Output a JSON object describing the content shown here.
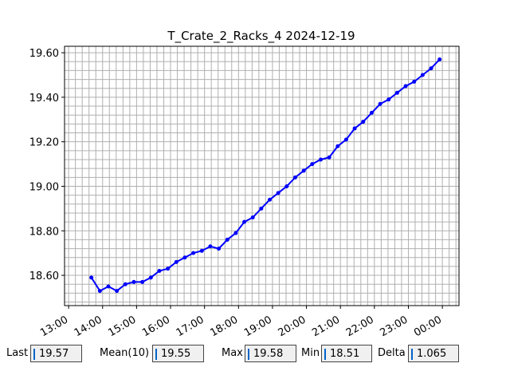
{
  "chart_data": {
    "type": "line",
    "title": "T_Crate_2_Racks_4 2024-12-19",
    "color": "#0000ff",
    "grid": true,
    "x": [
      13.67,
      13.92,
      14.17,
      14.42,
      14.67,
      14.92,
      15.17,
      15.42,
      15.67,
      15.92,
      16.17,
      16.42,
      16.67,
      16.92,
      17.17,
      17.42,
      17.67,
      17.92,
      18.17,
      18.42,
      18.67,
      18.92,
      19.17,
      19.42,
      19.67,
      19.92,
      20.17,
      20.42,
      20.67,
      20.92,
      21.17,
      21.42,
      21.67,
      21.92,
      22.17,
      22.42,
      22.67,
      22.92,
      23.17,
      23.42,
      23.67,
      23.92
    ],
    "values": [
      18.59,
      18.53,
      18.55,
      18.53,
      18.56,
      18.57,
      18.57,
      18.59,
      18.62,
      18.63,
      18.66,
      18.68,
      18.7,
      18.71,
      18.73,
      18.72,
      18.76,
      18.79,
      18.84,
      18.86,
      18.9,
      18.94,
      18.97,
      19.0,
      19.04,
      19.07,
      19.1,
      19.12,
      19.13,
      19.18,
      19.21,
      19.26,
      19.29,
      19.33,
      19.37,
      19.39,
      19.42,
      19.45,
      19.47,
      19.5,
      19.53,
      19.57
    ],
    "xlim": [
      12.88,
      24.49
    ],
    "ylim": [
      18.464,
      19.629
    ],
    "xticks": [
      {
        "value": 13,
        "label": "13:00"
      },
      {
        "value": 14,
        "label": "14:00"
      },
      {
        "value": 15,
        "label": "15:00"
      },
      {
        "value": 16,
        "label": "16:00"
      },
      {
        "value": 17,
        "label": "17:00"
      },
      {
        "value": 18,
        "label": "18:00"
      },
      {
        "value": 19,
        "label": "19:00"
      },
      {
        "value": 20,
        "label": "20:00"
      },
      {
        "value": 21,
        "label": "21:00"
      },
      {
        "value": 22,
        "label": "22:00"
      },
      {
        "value": 23,
        "label": "23:00"
      },
      {
        "value": 24,
        "label": "00:00"
      }
    ],
    "yticks": [
      {
        "value": 18.6,
        "label": "18.60"
      },
      {
        "value": 18.8,
        "label": "18.80"
      },
      {
        "value": 19.0,
        "label": "19.00"
      },
      {
        "value": 19.2,
        "label": "19.20"
      },
      {
        "value": 19.4,
        "label": "19.40"
      },
      {
        "value": 19.6,
        "label": "19.60"
      }
    ]
  },
  "status_bar": {
    "fields": [
      {
        "label": "Last",
        "value": 19.57
      },
      {
        "label": "Mean(10)",
        "value": 19.55
      },
      {
        "label": "Max",
        "value": 19.58
      },
      {
        "label": "Min",
        "value": 18.51
      },
      {
        "label": "Delta",
        "value": 1.065
      }
    ]
  }
}
